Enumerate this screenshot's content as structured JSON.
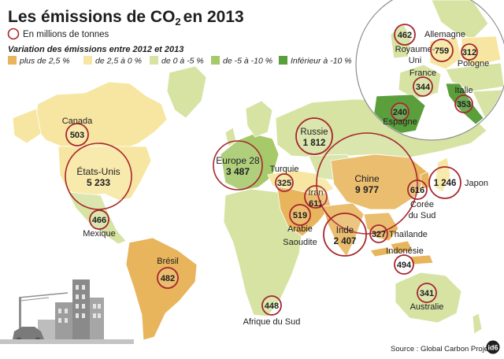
{
  "title": "Les émissions de CO",
  "title_sub": "2",
  "title_year": "en 2013",
  "unit_note": "En millions de tonnes",
  "legend_title": "Variation des émissions entre 2012 et 2013",
  "legend": [
    {
      "label": "plus de 2,5 %",
      "color": "#e8b45c"
    },
    {
      "label": "de 2,5 à 0 %",
      "color": "#f7e6a1"
    },
    {
      "label": "de 0 à -5 %",
      "color": "#d6e3a3"
    },
    {
      "label": "de -5 à -10 %",
      "color": "#a6c96a"
    },
    {
      "label": "Inférieur à -10 %",
      "color": "#5b9e3c"
    }
  ],
  "countries": [
    {
      "id": "canada",
      "name": "Canada",
      "value": "503"
    },
    {
      "id": "usa",
      "name": "États-Unis",
      "value": "5 233"
    },
    {
      "id": "mexique",
      "name": "Mexique",
      "value": "466"
    },
    {
      "id": "bresil",
      "name": "Brésil",
      "value": "482"
    },
    {
      "id": "europe28",
      "name": "Europe 28",
      "value": "3 487"
    },
    {
      "id": "russie",
      "name": "Russie",
      "value": "1 812"
    },
    {
      "id": "turquie",
      "name": "Turquie",
      "value": "325"
    },
    {
      "id": "iran",
      "name": "Iran",
      "value": "611"
    },
    {
      "id": "arabie",
      "name": "Arabie Saoudite",
      "name_l1": "Arabie",
      "name_l2": "Saoudite",
      "value": "519"
    },
    {
      "id": "chine",
      "name": "Chine",
      "value": "9 977"
    },
    {
      "id": "inde",
      "name": "Inde",
      "value": "2 407"
    },
    {
      "id": "japon",
      "name": "Japon",
      "value": "1 246"
    },
    {
      "id": "coree",
      "name": "Corée du Sud",
      "name_l1": "Corée",
      "name_l2": "du Sud",
      "value": "616"
    },
    {
      "id": "thailande",
      "name": "Thaïlande",
      "value": "327"
    },
    {
      "id": "indonesie",
      "name": "Indonésie",
      "value": "494"
    },
    {
      "id": "australie",
      "name": "Australie",
      "value": "341"
    },
    {
      "id": "afriquesud",
      "name": "Afrique du Sud",
      "value": "448"
    }
  ],
  "inset": [
    {
      "id": "royaumeuni",
      "name": "Royaume-Uni",
      "name_l1": "Royaume-",
      "name_l2": "Uni",
      "value": "462"
    },
    {
      "id": "allemagne",
      "name": "Allemagne",
      "value": "759"
    },
    {
      "id": "pologne",
      "name": "Pologne",
      "value": "312"
    },
    {
      "id": "france",
      "name": "France",
      "value": "344"
    },
    {
      "id": "italie",
      "name": "Italie",
      "value": "353"
    },
    {
      "id": "espagne",
      "name": "Espagne",
      "value": "240"
    }
  ],
  "source": "Source : Global Carbon Project",
  "logo": "id6"
}
